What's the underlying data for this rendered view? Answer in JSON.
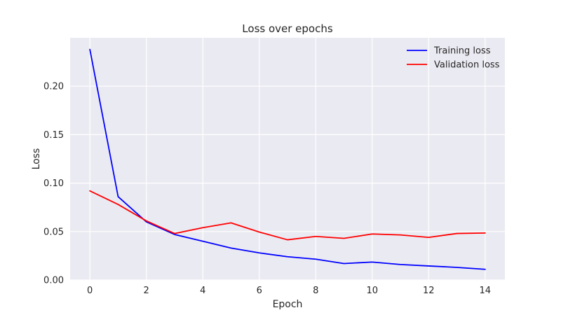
{
  "chart_data": {
    "type": "line",
    "title": "Loss over epochs",
    "xlabel": "Epoch",
    "ylabel": "Loss",
    "xlim": [
      -0.7,
      14.7
    ],
    "ylim": [
      0,
      0.25
    ],
    "xticks": [
      0,
      2,
      4,
      6,
      8,
      10,
      12,
      14
    ],
    "yticks": [
      0.0,
      0.05,
      0.1,
      0.15,
      0.2
    ],
    "ytick_labels": [
      "0.00",
      "0.05",
      "0.10",
      "0.15",
      "0.20"
    ],
    "xtick_labels": [
      "0",
      "2",
      "4",
      "6",
      "8",
      "10",
      "12",
      "14"
    ],
    "grid": true,
    "legend_position": "top-right",
    "x": [
      0,
      1,
      2,
      3,
      4,
      5,
      6,
      7,
      8,
      9,
      10,
      11,
      12,
      13,
      14
    ],
    "series": [
      {
        "name": "Training loss",
        "color": "#0000ff",
        "values": [
          0.238,
          0.086,
          0.06,
          0.047,
          0.04,
          0.033,
          0.028,
          0.024,
          0.0215,
          0.017,
          0.0185,
          0.016,
          0.0145,
          0.013,
          0.011
        ]
      },
      {
        "name": "Validation loss",
        "color": "#ff0000",
        "values": [
          0.092,
          0.078,
          0.061,
          0.048,
          0.054,
          0.059,
          0.0495,
          0.0415,
          0.045,
          0.043,
          0.0475,
          0.0465,
          0.044,
          0.048,
          0.0485
        ]
      }
    ],
    "colors": {
      "plot_background": "#eaeaf2",
      "grid": "#ffffff",
      "text": "#262626"
    }
  }
}
